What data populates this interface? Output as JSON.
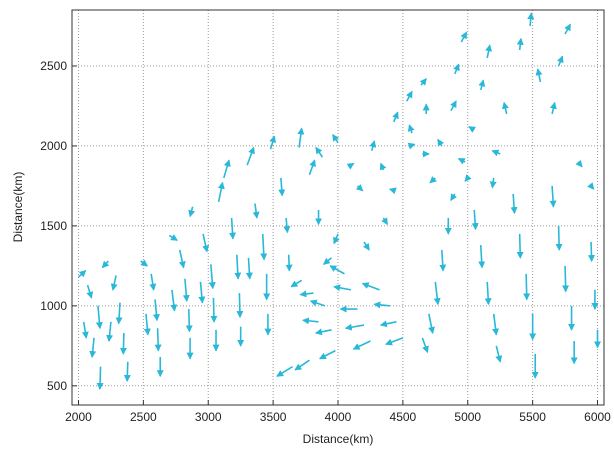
{
  "chart_data": {
    "type": "vector_field",
    "title": "",
    "xlabel": "Distance(km)",
    "ylabel": "Distance(km)",
    "xlim": [
      1950,
      6050
    ],
    "ylim": [
      380,
      2850
    ],
    "xticks": [
      2000,
      2500,
      3000,
      3500,
      4000,
      4500,
      5000,
      5500,
      6000
    ],
    "yticks": [
      500,
      1000,
      1500,
      2000,
      2500
    ],
    "grid": true,
    "grid_style": "dotted",
    "colors": {
      "arrow": "#29b8d8",
      "grid": "#9a9a9a",
      "axis": "#333333"
    },
    "vectors": [
      {
        "x": 2000,
        "y": 1180,
        "u": 55,
        "v": 40
      },
      {
        "x": 2070,
        "y": 1130,
        "u": 30,
        "v": -80
      },
      {
        "x": 2150,
        "y": 1000,
        "u": 15,
        "v": -140
      },
      {
        "x": 2120,
        "y": 800,
        "u": -15,
        "v": -120
      },
      {
        "x": 2170,
        "y": 620,
        "u": -5,
        "v": -140
      },
      {
        "x": 2040,
        "y": 900,
        "u": 20,
        "v": -100
      },
      {
        "x": 2230,
        "y": 1280,
        "u": -45,
        "v": -40
      },
      {
        "x": 2290,
        "y": 1190,
        "u": -25,
        "v": -90
      },
      {
        "x": 2320,
        "y": 1020,
        "u": -10,
        "v": -130
      },
      {
        "x": 2350,
        "y": 830,
        "u": -5,
        "v": -130
      },
      {
        "x": 2380,
        "y": 650,
        "u": -5,
        "v": -120
      },
      {
        "x": 2250,
        "y": 900,
        "u": -15,
        "v": -120
      },
      {
        "x": 2480,
        "y": 1280,
        "u": 50,
        "v": -30
      },
      {
        "x": 2560,
        "y": 1200,
        "u": 20,
        "v": -100
      },
      {
        "x": 2590,
        "y": 1040,
        "u": 15,
        "v": -130
      },
      {
        "x": 2610,
        "y": 860,
        "u": 5,
        "v": -140
      },
      {
        "x": 2630,
        "y": 680,
        "u": 0,
        "v": -120
      },
      {
        "x": 2520,
        "y": 950,
        "u": 15,
        "v": -130
      },
      {
        "x": 2700,
        "y": 1440,
        "u": 60,
        "v": -30
      },
      {
        "x": 2780,
        "y": 1350,
        "u": 30,
        "v": -110
      },
      {
        "x": 2820,
        "y": 1170,
        "u": 15,
        "v": -140
      },
      {
        "x": 2850,
        "y": 980,
        "u": 5,
        "v": -140
      },
      {
        "x": 2860,
        "y": 800,
        "u": 0,
        "v": -130
      },
      {
        "x": 2720,
        "y": 1100,
        "u": 20,
        "v": -130
      },
      {
        "x": 2880,
        "y": 1620,
        "u": -20,
        "v": -60
      },
      {
        "x": 2960,
        "y": 1450,
        "u": 30,
        "v": -110
      },
      {
        "x": 3020,
        "y": 1260,
        "u": 15,
        "v": -150
      },
      {
        "x": 3040,
        "y": 1050,
        "u": 5,
        "v": -150
      },
      {
        "x": 3060,
        "y": 850,
        "u": 0,
        "v": -130
      },
      {
        "x": 2940,
        "y": 1150,
        "u": 15,
        "v": -130
      },
      {
        "x": 3120,
        "y": 1800,
        "u": 40,
        "v": 110
      },
      {
        "x": 3180,
        "y": 1550,
        "u": 10,
        "v": -130
      },
      {
        "x": 3220,
        "y": 1320,
        "u": 10,
        "v": -150
      },
      {
        "x": 3240,
        "y": 1080,
        "u": 5,
        "v": -150
      },
      {
        "x": 3250,
        "y": 870,
        "u": 0,
        "v": -120
      },
      {
        "x": 3080,
        "y": 1650,
        "u": 30,
        "v": 120
      },
      {
        "x": 3300,
        "y": 1880,
        "u": 50,
        "v": 110
      },
      {
        "x": 3360,
        "y": 1640,
        "u": 15,
        "v": -90
      },
      {
        "x": 3420,
        "y": 1450,
        "u": 10,
        "v": -160
      },
      {
        "x": 3450,
        "y": 1200,
        "u": 0,
        "v": -160
      },
      {
        "x": 3460,
        "y": 950,
        "u": 0,
        "v": -130
      },
      {
        "x": 3310,
        "y": 1300,
        "u": 10,
        "v": -130
      },
      {
        "x": 3480,
        "y": 1980,
        "u": 30,
        "v": 80
      },
      {
        "x": 3560,
        "y": 1800,
        "u": 10,
        "v": -110
      },
      {
        "x": 3600,
        "y": 1550,
        "u": 10,
        "v": -90
      },
      {
        "x": 3620,
        "y": 1320,
        "u": 5,
        "v": -100
      },
      {
        "x": 3700,
        "y": 1990,
        "u": 20,
        "v": 120
      },
      {
        "x": 3780,
        "y": 1820,
        "u": 40,
        "v": 90
      },
      {
        "x": 3850,
        "y": 1600,
        "u": 0,
        "v": -90
      },
      {
        "x": 3720,
        "y": 1160,
        "u": -80,
        "v": -40
      },
      {
        "x": 3810,
        "y": 1080,
        "u": -100,
        "v": -10
      },
      {
        "x": 3900,
        "y": 1000,
        "u": -110,
        "v": 30
      },
      {
        "x": 3850,
        "y": 900,
        "u": -120,
        "v": 10
      },
      {
        "x": 3950,
        "y": 850,
        "u": -120,
        "v": -20
      },
      {
        "x": 4050,
        "y": 1200,
        "u": -110,
        "v": 50
      },
      {
        "x": 4100,
        "y": 1100,
        "u": -130,
        "v": 20
      },
      {
        "x": 4150,
        "y": 980,
        "u": -130,
        "v": 0
      },
      {
        "x": 4200,
        "y": 880,
        "u": -140,
        "v": -20
      },
      {
        "x": 4250,
        "y": 780,
        "u": -130,
        "v": -50
      },
      {
        "x": 3980,
        "y": 720,
        "u": -120,
        "v": -50
      },
      {
        "x": 3780,
        "y": 660,
        "u": -110,
        "v": -60
      },
      {
        "x": 3650,
        "y": 620,
        "u": -120,
        "v": -60
      },
      {
        "x": 4320,
        "y": 1100,
        "u": -130,
        "v": 40
      },
      {
        "x": 4400,
        "y": 1000,
        "u": -120,
        "v": 10
      },
      {
        "x": 4450,
        "y": 900,
        "u": -120,
        "v": -20
      },
      {
        "x": 4500,
        "y": 800,
        "u": -130,
        "v": -40
      },
      {
        "x": 3880,
        "y": 1930,
        "u": -50,
        "v": 60
      },
      {
        "x": 4000,
        "y": 2020,
        "u": -40,
        "v": 50
      },
      {
        "x": 4080,
        "y": 1870,
        "u": 40,
        "v": 20
      },
      {
        "x": 4150,
        "y": 1750,
        "u": 40,
        "v": -30
      },
      {
        "x": 4260,
        "y": 1970,
        "u": 20,
        "v": 60
      },
      {
        "x": 4350,
        "y": 1850,
        "u": -20,
        "v": 40
      },
      {
        "x": 4440,
        "y": 1720,
        "u": -40,
        "v": 10
      },
      {
        "x": 4430,
        "y": 2150,
        "u": 30,
        "v": 60
      },
      {
        "x": 4530,
        "y": 2280,
        "u": 40,
        "v": 60
      },
      {
        "x": 4570,
        "y": 2080,
        "u": -20,
        "v": 50
      },
      {
        "x": 4640,
        "y": 2380,
        "u": 40,
        "v": 40
      },
      {
        "x": 4680,
        "y": 2200,
        "u": 0,
        "v": 60
      },
      {
        "x": 4750,
        "y": 1800,
        "u": -40,
        "v": -30
      },
      {
        "x": 4800,
        "y": 2000,
        "u": -30,
        "v": 40
      },
      {
        "x": 4870,
        "y": 2220,
        "u": 40,
        "v": 60
      },
      {
        "x": 4900,
        "y": 2450,
        "u": 30,
        "v": 60
      },
      {
        "x": 4950,
        "y": 2650,
        "u": 40,
        "v": 60
      },
      {
        "x": 4980,
        "y": 1900,
        "u": -50,
        "v": 20
      },
      {
        "x": 5050,
        "y": 2100,
        "u": -40,
        "v": 20
      },
      {
        "x": 5100,
        "y": 2350,
        "u": 20,
        "v": 60
      },
      {
        "x": 5150,
        "y": 2550,
        "u": 20,
        "v": 80
      },
      {
        "x": 5200,
        "y": 1800,
        "u": -10,
        "v": -60
      },
      {
        "x": 5250,
        "y": 1950,
        "u": -60,
        "v": 20
      },
      {
        "x": 5300,
        "y": 2200,
        "u": -20,
        "v": 70
      },
      {
        "x": 5400,
        "y": 2600,
        "u": 10,
        "v": 70
      },
      {
        "x": 5480,
        "y": 2750,
        "u": 10,
        "v": 80
      },
      {
        "x": 5560,
        "y": 2400,
        "u": -20,
        "v": 80
      },
      {
        "x": 5650,
        "y": 2200,
        "u": 20,
        "v": 70
      },
      {
        "x": 5700,
        "y": 2500,
        "u": 30,
        "v": 60
      },
      {
        "x": 5750,
        "y": 2700,
        "u": 40,
        "v": 60
      },
      {
        "x": 5850,
        "y": 1900,
        "u": 30,
        "v": -30
      },
      {
        "x": 5950,
        "y": 1750,
        "u": 20,
        "v": -20
      },
      {
        "x": 4850,
        "y": 1550,
        "u": 0,
        "v": -100
      },
      {
        "x": 4800,
        "y": 1350,
        "u": 10,
        "v": -130
      },
      {
        "x": 4750,
        "y": 1150,
        "u": 20,
        "v": -140
      },
      {
        "x": 4700,
        "y": 950,
        "u": 30,
        "v": -120
      },
      {
        "x": 4650,
        "y": 800,
        "u": 40,
        "v": -90
      },
      {
        "x": 5050,
        "y": 1600,
        "u": 10,
        "v": -120
      },
      {
        "x": 5100,
        "y": 1380,
        "u": 10,
        "v": -140
      },
      {
        "x": 5150,
        "y": 1150,
        "u": 10,
        "v": -140
      },
      {
        "x": 5200,
        "y": 950,
        "u": 20,
        "v": -130
      },
      {
        "x": 5220,
        "y": 750,
        "u": 30,
        "v": -100
      },
      {
        "x": 5350,
        "y": 1700,
        "u": 10,
        "v": -120
      },
      {
        "x": 5400,
        "y": 1450,
        "u": 5,
        "v": -150
      },
      {
        "x": 5450,
        "y": 1200,
        "u": 5,
        "v": -160
      },
      {
        "x": 5500,
        "y": 950,
        "u": 0,
        "v": -160
      },
      {
        "x": 5520,
        "y": 700,
        "u": 0,
        "v": -150
      },
      {
        "x": 5650,
        "y": 1750,
        "u": 10,
        "v": -130
      },
      {
        "x": 5700,
        "y": 1500,
        "u": 5,
        "v": -150
      },
      {
        "x": 5750,
        "y": 1250,
        "u": 5,
        "v": -160
      },
      {
        "x": 5800,
        "y": 1000,
        "u": 0,
        "v": -150
      },
      {
        "x": 5820,
        "y": 780,
        "u": 0,
        "v": -140
      },
      {
        "x": 5950,
        "y": 1400,
        "u": 5,
        "v": -120
      },
      {
        "x": 5980,
        "y": 1100,
        "u": 0,
        "v": -120
      },
      {
        "x": 6000,
        "y": 850,
        "u": 0,
        "v": -110
      },
      {
        "x": 4550,
        "y": 2000,
        "u": 40,
        "v": 10
      },
      {
        "x": 4650,
        "y": 1950,
        "u": 50,
        "v": 0
      },
      {
        "x": 4900,
        "y": 1700,
        "u": -30,
        "v": -40
      },
      {
        "x": 5000,
        "y": 1800,
        "u": -20,
        "v": -20
      },
      {
        "x": 4350,
        "y": 1550,
        "u": 30,
        "v": -40
      },
      {
        "x": 4200,
        "y": 1400,
        "u": 40,
        "v": -50
      },
      {
        "x": 4000,
        "y": 1450,
        "u": -30,
        "v": -60
      },
      {
        "x": 3950,
        "y": 1300,
        "u": -60,
        "v": -40
      }
    ]
  }
}
